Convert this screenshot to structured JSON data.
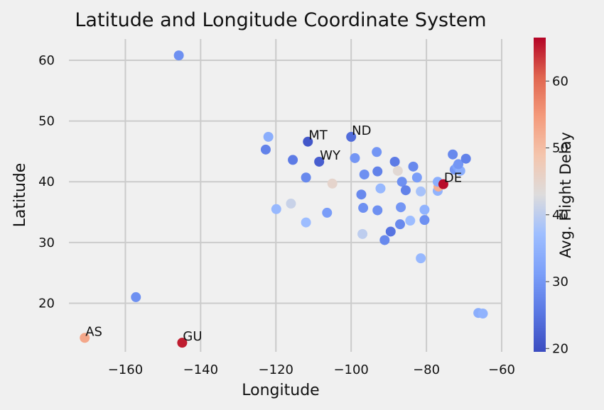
{
  "chart_data": {
    "type": "scatter",
    "title": "Latitude and Longitude Coordinate System",
    "xlabel": "Longitude",
    "ylabel": "Latitude",
    "xlim": [
      -175,
      -60
    ],
    "ylim": [
      12,
      63.5
    ],
    "xticks": [
      -160,
      -140,
      -120,
      -100,
      -80,
      -60
    ],
    "xtick_labels": [
      "−160",
      "−140",
      "−120",
      "−100",
      "−80",
      "−60"
    ],
    "yticks": [
      20,
      30,
      40,
      50,
      60
    ],
    "ytick_labels": [
      "20",
      "30",
      "40",
      "50",
      "60"
    ],
    "grid": true,
    "colorbar": {
      "label": "Avg. Flight Delay",
      "min": 19.5,
      "max": 66.5,
      "ticks": [
        20,
        30,
        40,
        50,
        60
      ],
      "tick_labels": [
        "20",
        "30",
        "40",
        "50",
        "60"
      ],
      "colormap": "coolwarm"
    },
    "points": [
      {
        "x": -145.8,
        "y": 60.8,
        "value": 29
      },
      {
        "x": -157.2,
        "y": 21.0,
        "value": 29
      },
      {
        "x": -170.8,
        "y": 14.3,
        "value": 53,
        "label": "AS"
      },
      {
        "x": -144.9,
        "y": 13.5,
        "value": 65,
        "label": "GU"
      },
      {
        "x": -122.0,
        "y": 47.4,
        "value": 34
      },
      {
        "x": -122.7,
        "y": 45.3,
        "value": 27
      },
      {
        "x": -111.5,
        "y": 46.6,
        "value": 21,
        "label": "MT"
      },
      {
        "x": -100.0,
        "y": 47.4,
        "value": 24,
        "label": "ND"
      },
      {
        "x": -108.5,
        "y": 43.3,
        "value": 22,
        "label": "WY"
      },
      {
        "x": -115.5,
        "y": 43.6,
        "value": 26
      },
      {
        "x": -112.0,
        "y": 40.7,
        "value": 28
      },
      {
        "x": -105.0,
        "y": 39.7,
        "value": 45
      },
      {
        "x": -119.9,
        "y": 35.5,
        "value": 36
      },
      {
        "x": -116.0,
        "y": 36.4,
        "value": 41
      },
      {
        "x": -112.0,
        "y": 33.3,
        "value": 37
      },
      {
        "x": -106.4,
        "y": 34.9,
        "value": 31
      },
      {
        "x": -99.0,
        "y": 43.9,
        "value": 30
      },
      {
        "x": -96.5,
        "y": 41.2,
        "value": 29
      },
      {
        "x": -93.2,
        "y": 44.9,
        "value": 30
      },
      {
        "x": -93.0,
        "y": 41.7,
        "value": 27
      },
      {
        "x": -97.3,
        "y": 37.9,
        "value": 28
      },
      {
        "x": -92.2,
        "y": 38.9,
        "value": 36
      },
      {
        "x": -96.8,
        "y": 35.7,
        "value": 29
      },
      {
        "x": -93.0,
        "y": 35.3,
        "value": 29
      },
      {
        "x": -97.0,
        "y": 31.4,
        "value": 40
      },
      {
        "x": -89.5,
        "y": 31.8,
        "value": 25
      },
      {
        "x": -91.1,
        "y": 30.4,
        "value": 28
      },
      {
        "x": -88.4,
        "y": 43.3,
        "value": 26
      },
      {
        "x": -87.6,
        "y": 41.8,
        "value": 44
      },
      {
        "x": -86.5,
        "y": 40.0,
        "value": 29
      },
      {
        "x": -85.5,
        "y": 38.6,
        "value": 27
      },
      {
        "x": -86.8,
        "y": 35.8,
        "value": 30
      },
      {
        "x": -87.0,
        "y": 33.0,
        "value": 28
      },
      {
        "x": -84.3,
        "y": 33.6,
        "value": 37
      },
      {
        "x": -83.5,
        "y": 42.5,
        "value": 28
      },
      {
        "x": -82.5,
        "y": 40.7,
        "value": 31
      },
      {
        "x": -81.5,
        "y": 38.4,
        "value": 38
      },
      {
        "x": -80.5,
        "y": 35.4,
        "value": 35
      },
      {
        "x": -80.5,
        "y": 33.7,
        "value": 29
      },
      {
        "x": -81.5,
        "y": 27.4,
        "value": 36
      },
      {
        "x": -77.0,
        "y": 38.5,
        "value": 35
      },
      {
        "x": -76.8,
        "y": 39.2,
        "value": 52
      },
      {
        "x": -77.0,
        "y": 40.0,
        "value": 34
      },
      {
        "x": -75.5,
        "y": 39.6,
        "value": 66,
        "label": "DE"
      },
      {
        "x": -73.0,
        "y": 44.5,
        "value": 28
      },
      {
        "x": -72.5,
        "y": 42.0,
        "value": 30
      },
      {
        "x": -71.8,
        "y": 42.5,
        "value": 32
      },
      {
        "x": -71.0,
        "y": 41.8,
        "value": 34
      },
      {
        "x": -71.5,
        "y": 42.9,
        "value": 30
      },
      {
        "x": -69.5,
        "y": 43.8,
        "value": 27
      },
      {
        "x": -66.2,
        "y": 18.4,
        "value": 34
      },
      {
        "x": -65.0,
        "y": 18.3,
        "value": 35
      }
    ]
  }
}
